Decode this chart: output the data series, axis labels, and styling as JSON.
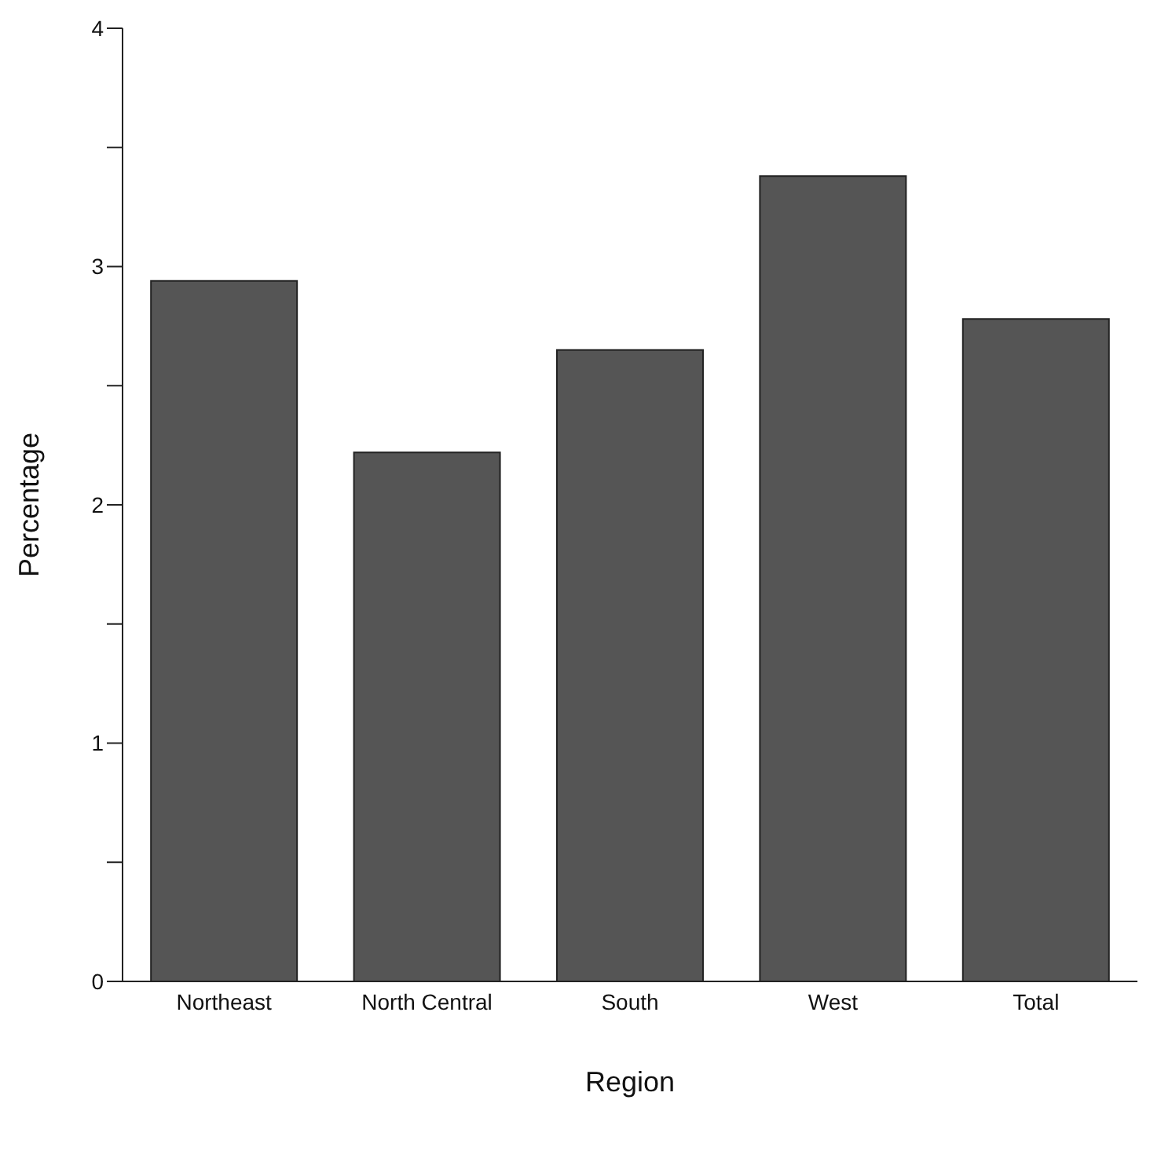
{
  "chart_data": {
    "type": "bar",
    "xlabel": "Region",
    "ylabel": "Percentage",
    "categories": [
      "Northeast",
      "North Central",
      "South",
      "West",
      "Total"
    ],
    "values": [
      2.94,
      2.22,
      2.65,
      3.38,
      2.78
    ],
    "color": "#555555",
    "ylim": [
      0,
      4
    ],
    "yticks": [
      0,
      {
        "value": 0.5,
        "label": null
      },
      1,
      {
        "value": 1.5,
        "label": null
      },
      2,
      {
        "value": 2.5,
        "label": null
      },
      3,
      {
        "value": 3.5,
        "label": null
      },
      4
    ],
    "grid": false,
    "legend": false
  }
}
